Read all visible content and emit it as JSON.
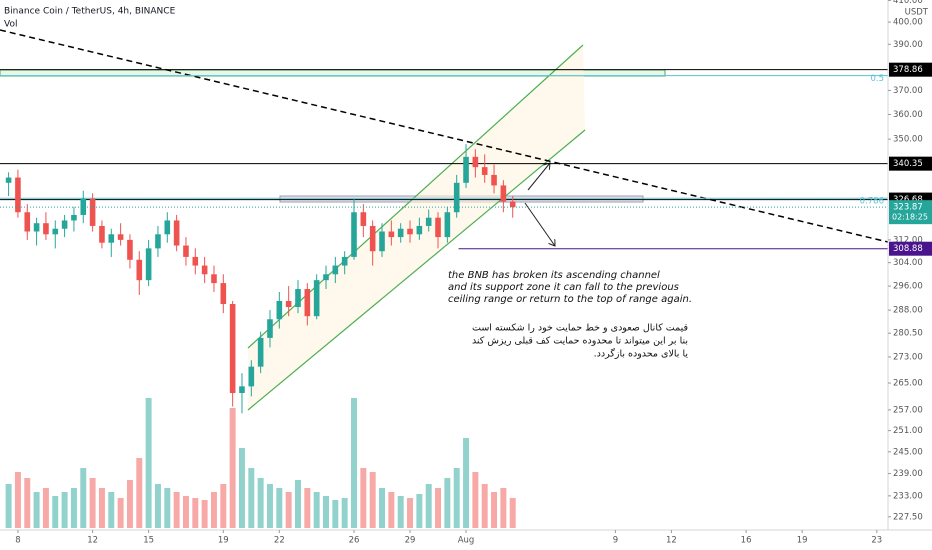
{
  "chart_data": {
    "type": "candlestick",
    "title": "Binance Coin / TetherUS, 4h, BINANCE",
    "volume_label": "Vol",
    "currency": "USDT",
    "countdown": "02:18:25",
    "log_scale": true,
    "up_color": "#26a69a",
    "down_color": "#ef5350",
    "xlim": [
      7.04,
      54.6
    ],
    "ylim": [
      224.1,
      410.2
    ],
    "xticks": [
      8,
      12,
      15,
      19,
      22,
      26,
      29,
      {
        "value": 32,
        "label": "Aug"
      },
      {
        "value": 40,
        "label": "9"
      },
      {
        "value": 43,
        "label": "12"
      },
      {
        "value": 47,
        "label": "16"
      },
      {
        "value": 50,
        "label": "19"
      },
      {
        "value": 54,
        "label": "23"
      }
    ],
    "yticks": [
      {
        "value": 410,
        "label": "410.00"
      },
      {
        "value": 400,
        "label": "400.00"
      },
      {
        "value": 390,
        "label": "390.00"
      },
      {
        "value": 370,
        "label": "370.00"
      },
      {
        "value": 360,
        "label": "360.00"
      },
      {
        "value": 350,
        "label": "350.00"
      },
      {
        "value": 312,
        "label": "312.00"
      },
      {
        "value": 304,
        "label": "304.00"
      },
      {
        "value": 296,
        "label": "296.00"
      },
      {
        "value": 288,
        "label": "288.00"
      },
      {
        "value": 280.5,
        "label": "280.50"
      },
      {
        "value": 273,
        "label": "273.00"
      },
      {
        "value": 265,
        "label": "265.00"
      },
      {
        "value": 257,
        "label": "257.00"
      },
      {
        "value": 251,
        "label": "251.00"
      },
      {
        "value": 245,
        "label": "245.00"
      },
      {
        "value": 239,
        "label": "239.00"
      },
      {
        "value": 233,
        "label": "233.00"
      },
      {
        "value": 227.5,
        "label": "227.50"
      }
    ],
    "x": [
      7.5,
      8,
      8.5,
      9,
      9.5,
      10,
      10.5,
      11,
      11.5,
      12,
      12.5,
      13,
      13.5,
      14,
      14.5,
      15,
      15.5,
      16,
      16.5,
      17,
      17.5,
      18,
      18.5,
      19,
      19.5,
      20,
      20.5,
      21,
      21.5,
      22,
      22.5,
      23,
      23.5,
      24,
      24.5,
      25,
      25.5,
      26,
      26.5,
      27,
      27.5,
      28,
      28.5,
      29,
      29.5,
      30,
      30.5,
      31,
      31.5,
      32,
      32.5,
      33,
      33.5,
      34,
      34.5
    ],
    "open": [
      333,
      335,
      322,
      315,
      318,
      314,
      316,
      319,
      321,
      327,
      317,
      311,
      314,
      312,
      305,
      298,
      309,
      314,
      319,
      310,
      306,
      303,
      300,
      297,
      290,
      262,
      264,
      270,
      279,
      285,
      291,
      289,
      295,
      286,
      298,
      300,
      303,
      306,
      322,
      317,
      308,
      315,
      313,
      316,
      314,
      317,
      320,
      313,
      322,
      333,
      343,
      339,
      336,
      332,
      326
    ],
    "high": [
      337,
      338,
      325,
      320,
      322,
      319,
      321,
      324,
      330,
      329,
      319,
      316,
      318,
      314,
      308,
      312,
      317,
      322,
      321,
      313,
      309,
      306,
      303,
      300,
      291,
      268,
      272,
      281,
      288,
      294,
      296,
      298,
      297,
      300,
      303,
      306,
      308,
      327,
      325,
      319,
      318,
      319,
      318,
      319,
      320,
      323,
      322,
      324,
      336,
      348,
      346,
      344,
      340,
      334,
      328
    ],
    "low": [
      328,
      320,
      312,
      310,
      312,
      309,
      313,
      315,
      318,
      315,
      309,
      306,
      310,
      302,
      293,
      296,
      306,
      311,
      308,
      303,
      300,
      297,
      294,
      287,
      258,
      256,
      261,
      268,
      276,
      282,
      286,
      287,
      283,
      285,
      295,
      297,
      300,
      305,
      313,
      303,
      306,
      310,
      311,
      311,
      312,
      315,
      309,
      311,
      320,
      331,
      335,
      333,
      329,
      322,
      320
    ],
    "close": [
      335,
      322,
      315,
      318,
      314,
      316,
      319,
      321,
      327,
      317,
      311,
      314,
      312,
      305,
      298,
      309,
      314,
      319,
      310,
      306,
      303,
      300,
      297,
      290,
      262,
      264,
      270,
      279,
      285,
      291,
      289,
      295,
      286,
      298,
      300,
      303,
      306,
      322,
      317,
      308,
      315,
      313,
      316,
      314,
      317,
      320,
      313,
      322,
      333,
      343,
      339,
      336,
      332,
      326,
      323.87
    ],
    "volume": [
      22,
      28,
      25,
      18,
      20,
      16,
      18,
      20,
      30,
      25,
      20,
      18,
      15,
      24,
      35,
      65,
      22,
      20,
      18,
      16,
      15,
      14,
      18,
      22,
      60,
      40,
      30,
      25,
      22,
      20,
      18,
      24,
      20,
      18,
      16,
      14,
      15,
      65,
      30,
      28,
      20,
      18,
      16,
      15,
      17,
      22,
      20,
      25,
      30,
      45,
      28,
      22,
      18,
      20,
      15
    ],
    "levels": [
      {
        "value": 378.86,
        "color": "#000000"
      },
      {
        "value": 340.35,
        "color": "#000000"
      },
      {
        "value": 326.68,
        "color": "#000000"
      },
      {
        "value": 308.88,
        "color": "#4a148c",
        "start": 31.6
      }
    ],
    "fib_levels": [
      {
        "ratio": 0.5,
        "price": 376.3
      },
      {
        "ratio": 0.786,
        "price": 327.2
      }
    ],
    "fib_color": "#56c2d6",
    "annotation_en": [
      "the BNB has broken its ascending channel",
      "and its support zone it can fall to the previous",
      "ceiling range or return to the top of range again."
    ],
    "annotation_fa": [
      "قیمت کانال صعودی و خط حمایت خود را شکسته است",
      "بنا بر این میتواند تا محدوده حمایت کف قبلی ریزش کند",
      "یا بالای محدوده بازگردد."
    ]
  }
}
